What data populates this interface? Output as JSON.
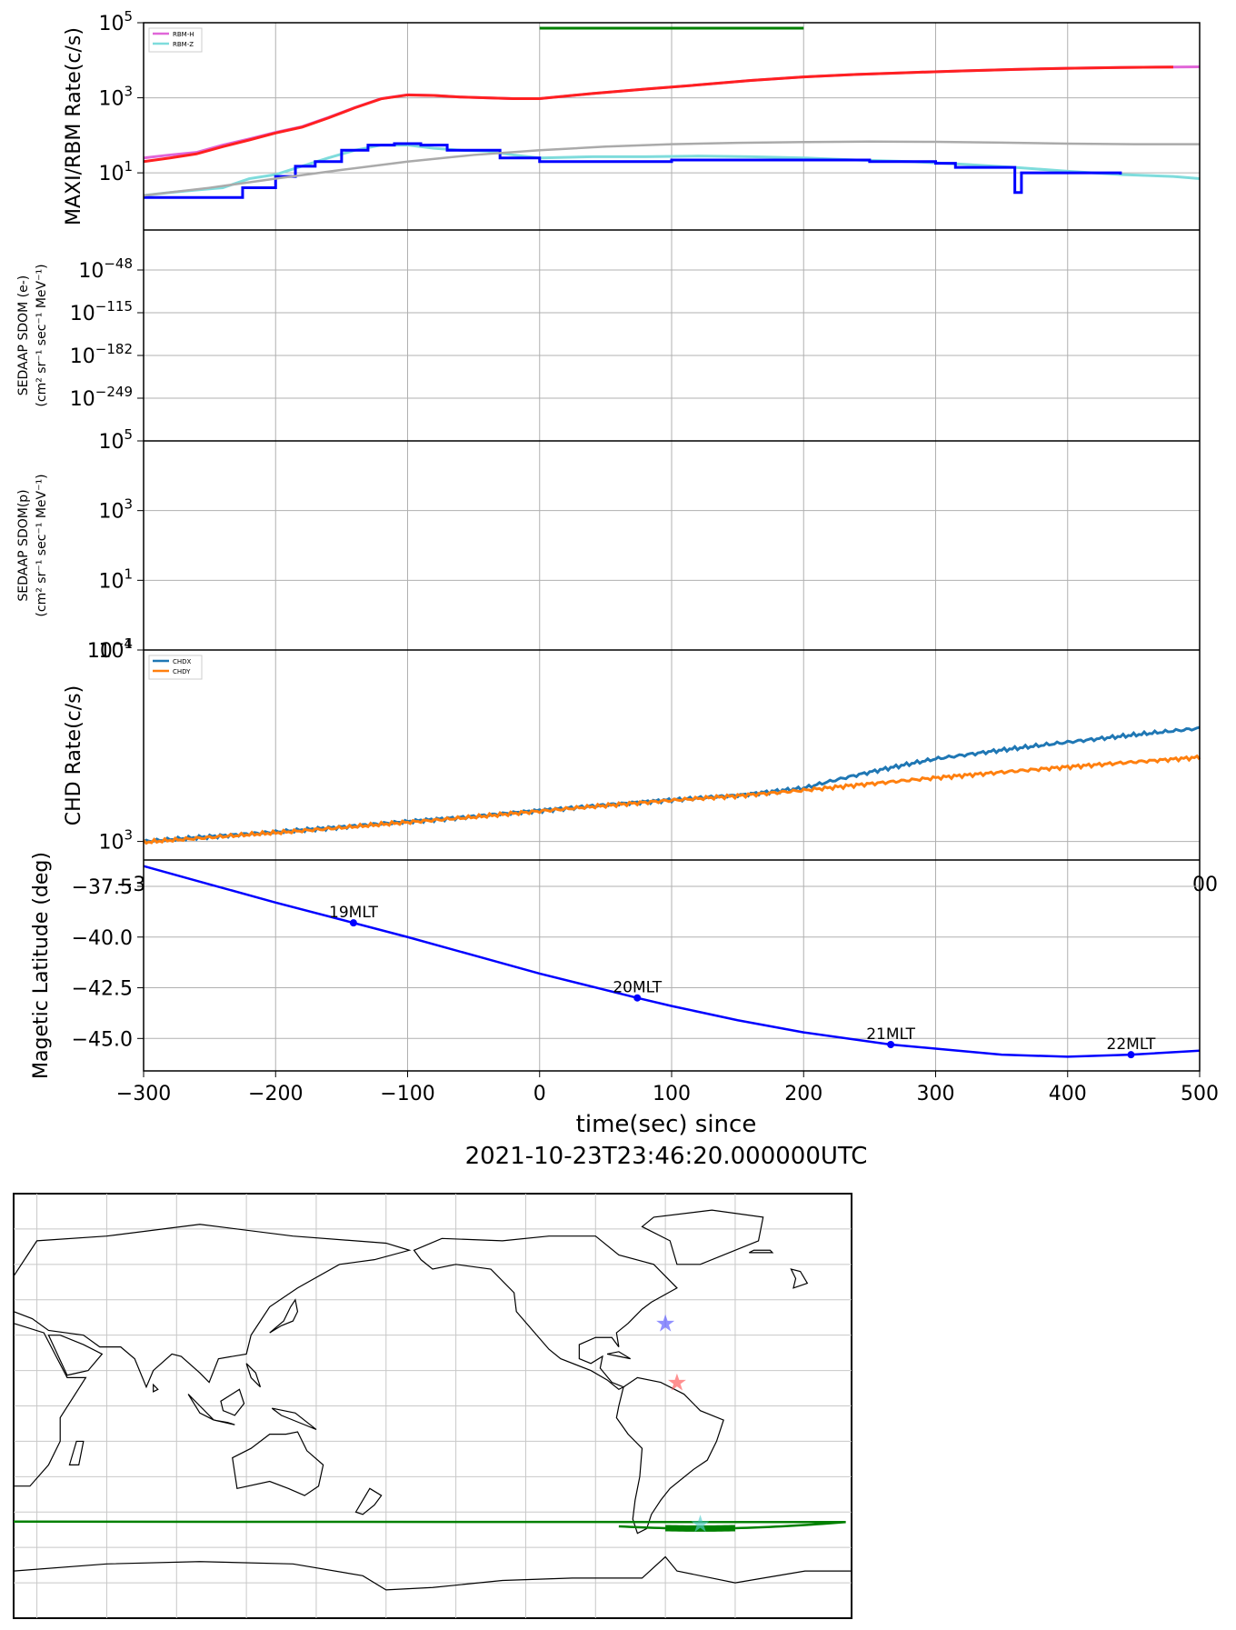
{
  "chart_data": [
    {
      "type": "line",
      "panel": "maxi-rbm",
      "ylabel": "MAXI/RBM Rate(c/s)",
      "yscale": "log",
      "ylim": [
        0.3,
        100000
      ],
      "yticks": [
        {
          "v": 10,
          "t": "10"
        },
        {
          "v": 1000,
          "t": "10"
        },
        {
          "v": 100000,
          "t": "10"
        }
      ],
      "ytick_exp": [
        "1",
        "3",
        "5"
      ],
      "xlim": [
        -300,
        500
      ],
      "legend": [
        "RBM-H",
        "RBM-Z"
      ],
      "legend_position": "top-left",
      "green_bar": [
        0,
        200
      ],
      "series": [
        {
          "name": "RBM-H",
          "color": "#e066d8",
          "x": [
            -300,
            -280,
            -260,
            -240,
            -220,
            -200,
            -180,
            -160,
            -140,
            -120,
            -100,
            -80,
            -60,
            -40,
            -20,
            0,
            40,
            80,
            120,
            160,
            200,
            240,
            280,
            320,
            360,
            400,
            440,
            480,
            500
          ],
          "y": [
            25,
            30,
            35,
            55,
            80,
            120,
            170,
            300,
            550,
            950,
            1200,
            1150,
            1050,
            1000,
            950,
            950,
            1300,
            1700,
            2200,
            2900,
            3600,
            4200,
            4700,
            5200,
            5700,
            6100,
            6400,
            6600,
            6700
          ]
        },
        {
          "name": "RBM-Z",
          "color": "#7edcdc",
          "x": [
            -300,
            -280,
            -260,
            -240,
            -220,
            -200,
            -180,
            -160,
            -140,
            -120,
            -100,
            -80,
            -60,
            -40,
            -20,
            0,
            40,
            80,
            120,
            160,
            200,
            240,
            280,
            320,
            360,
            400,
            440,
            480,
            500
          ],
          "y": [
            2.5,
            3,
            3.5,
            4,
            7,
            9,
            15,
            25,
            40,
            55,
            55,
            45,
            40,
            38,
            30,
            25,
            27,
            27,
            28,
            27,
            25,
            22,
            20,
            17,
            14,
            11,
            9,
            8,
            7
          ]
        },
        {
          "name": "Red",
          "color": "#ff2020",
          "x": [
            -300,
            -280,
            -260,
            -240,
            -220,
            -200,
            -180,
            -160,
            -140,
            -120,
            -100,
            -80,
            -60,
            -40,
            -20,
            0,
            40,
            80,
            120,
            160,
            200,
            240,
            280,
            320,
            360,
            400,
            440,
            480
          ],
          "y": [
            20,
            25,
            32,
            50,
            75,
            115,
            165,
            290,
            540,
            940,
            1190,
            1150,
            1050,
            1000,
            950,
            950,
            1300,
            1700,
            2200,
            2900,
            3600,
            4200,
            4700,
            5200,
            5700,
            6100,
            6400,
            6600
          ]
        },
        {
          "name": "Blue",
          "color": "#0000ff",
          "step": true,
          "x": [
            -300,
            -250,
            -225,
            -200,
            -185,
            -170,
            -150,
            -130,
            -110,
            -90,
            -70,
            -30,
            0,
            100,
            175,
            250,
            300,
            315,
            355,
            360,
            365,
            440
          ],
          "y": [
            2.2,
            2.2,
            4,
            8,
            15,
            20,
            40,
            55,
            60,
            55,
            40,
            25,
            20,
            22,
            22,
            20,
            18,
            14,
            14,
            3,
            10,
            9
          ]
        },
        {
          "name": "Gray",
          "color": "#aaaaaa",
          "x": [
            -300,
            -250,
            -200,
            -150,
            -100,
            -50,
            0,
            50,
            100,
            150,
            200,
            250,
            300,
            350,
            400,
            450,
            500
          ],
          "y": [
            2.5,
            4,
            7,
            12,
            20,
            30,
            40,
            50,
            58,
            63,
            66,
            68,
            67,
            64,
            60,
            58,
            58
          ]
        }
      ]
    },
    {
      "type": "line",
      "panel": "sedaap-e",
      "ylabel_line1": "SEDAAP SDOM (e-)",
      "ylabel_line2": "(cm² sr⁻¹ sec⁻¹ MeV⁻¹)",
      "yticks": [
        {
          "t": "10",
          "e": "−48"
        },
        {
          "t": "10",
          "e": "−115"
        },
        {
          "t": "10",
          "e": "−182"
        },
        {
          "t": "10",
          "e": "−249"
        }
      ],
      "xlim": [
        -300,
        500
      ],
      "series": []
    },
    {
      "type": "line",
      "panel": "sedaap-p",
      "ylabel_line1": "SEDAAP SDOM(p)",
      "ylabel_line2": "(cm² sr⁻¹ sec⁻¹ MeV⁻¹)",
      "yscale": "log",
      "ylim": [
        0.1,
        100000
      ],
      "yticks": [
        {
          "t": "10",
          "e": "5"
        },
        {
          "t": "10",
          "e": "3"
        },
        {
          "t": "10",
          "e": "1"
        },
        {
          "t": "10",
          "e": "−1"
        }
      ],
      "xlim": [
        -300,
        500
      ],
      "series": []
    },
    {
      "type": "line",
      "panel": "chd",
      "ylabel": "CHD Rate(c/s)",
      "yscale": "log",
      "ylim": [
        800,
        10000
      ],
      "yticks": [
        {
          "t": "10",
          "e": "3"
        },
        {
          "t": "10",
          "e": "4"
        }
      ],
      "xlim": [
        -300,
        500
      ],
      "legend": [
        "CHDX",
        "CHDY"
      ],
      "legend_position": "top-left",
      "series": [
        {
          "name": "CHDX",
          "color": "#1f77b4",
          "x": [
            -300,
            -250,
            -200,
            -150,
            -100,
            -50,
            0,
            50,
            100,
            150,
            200,
            250,
            300,
            350,
            400,
            450,
            500
          ],
          "y": [
            1000,
            1060,
            1120,
            1190,
            1270,
            1350,
            1450,
            1550,
            1650,
            1740,
            1900,
            2300,
            2700,
            3000,
            3300,
            3600,
            3900
          ]
        },
        {
          "name": "CHDY",
          "color": "#ff7f0e",
          "x": [
            -300,
            -250,
            -200,
            -150,
            -100,
            -50,
            0,
            50,
            100,
            150,
            200,
            250,
            300,
            350,
            400,
            450,
            500
          ],
          "y": [
            990,
            1050,
            1110,
            1180,
            1260,
            1340,
            1440,
            1540,
            1640,
            1730,
            1850,
            2000,
            2150,
            2300,
            2450,
            2600,
            2750
          ]
        }
      ],
      "xticks_fragment": [
        "−3",
        "00"
      ]
    },
    {
      "type": "line",
      "panel": "maglat",
      "ylabel": "Magetic Latitude  (deg)",
      "ylim": [
        -46.6,
        -36.2
      ],
      "yticks": [
        -37.5,
        -40.0,
        -42.5,
        -45.0
      ],
      "ytick_labels": [
        "−37.5",
        "−40.0",
        "−42.5",
        "−45.0"
      ],
      "xlim": [
        -300,
        500
      ],
      "xticks": [
        -300,
        -200,
        -100,
        0,
        100,
        200,
        300,
        400,
        500
      ],
      "xtick_labels": [
        "−300",
        "−200",
        "−100",
        "0",
        "100",
        "200",
        "300",
        "400",
        "500"
      ],
      "xlabel_line1": "time(sec) since",
      "xlabel_line2": "2021-10-23T23:46:20.000000UTC",
      "series": [
        {
          "name": "",
          "color": "#0000ff",
          "x": [
            -300,
            -250,
            -200,
            -141,
            -100,
            -50,
            0,
            74,
            100,
            150,
            200,
            266,
            300,
            350,
            400,
            448,
            500
          ],
          "y": [
            -36.5,
            -37.4,
            -38.3,
            -39.3,
            -40.0,
            -40.9,
            -41.8,
            -43.0,
            -43.4,
            -44.1,
            -44.7,
            -45.3,
            -45.5,
            -45.8,
            -45.9,
            -45.8,
            -45.6
          ]
        }
      ],
      "mlt_labels": [
        {
          "x": -141,
          "y": -39.3,
          "t": "19MLT"
        },
        {
          "x": 74,
          "y": -43.0,
          "t": "20MLT"
        },
        {
          "x": 266,
          "y": -45.3,
          "t": "21MLT"
        },
        {
          "x": 448,
          "y": -45.8,
          "t": "22MLT"
        }
      ]
    }
  ],
  "map": {
    "markers": [
      {
        "symbol": "★",
        "color": "#5555ff",
        "lon": -60,
        "lat": 35
      },
      {
        "symbol": "★",
        "color": "#ff5555",
        "lon": -55,
        "lat": 10
      },
      {
        "symbol": "★",
        "color": "#55cccc",
        "lon": -45,
        "lat": -50
      }
    ],
    "track_color": "#008000"
  }
}
